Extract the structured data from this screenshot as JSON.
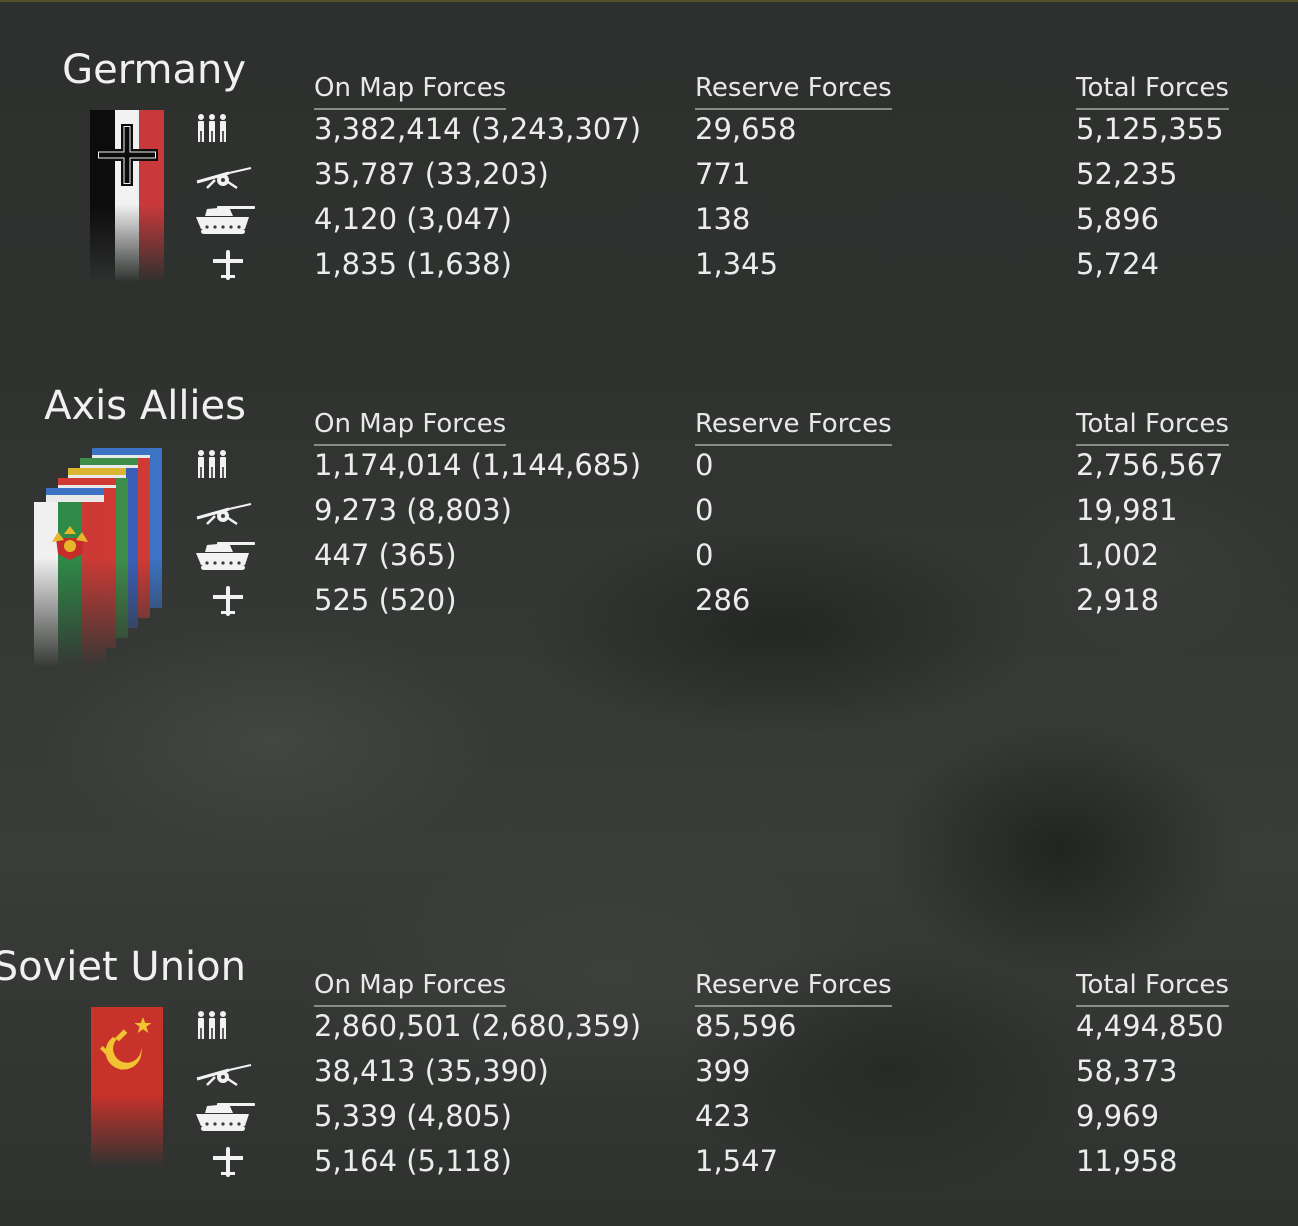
{
  "icons": {
    "manpower": "infantry-icon",
    "guns": "artillery-icon",
    "afv": "tank-icon",
    "aircraft": "aircraft-icon"
  },
  "colors": {
    "text": "#ebebeb",
    "header_rule": "#8a8c89",
    "background": "#2f3230"
  },
  "factions": [
    {
      "name": "Germany",
      "flag": "germany-flag",
      "headers": {
        "on_map": "On Map Forces",
        "reserve": "Reserve Forces",
        "total": "Total Forces"
      },
      "rows": [
        {
          "icon": "infantry-icon",
          "on_map": "3,382,414 (3,243,307)",
          "reserve": "29,658",
          "total": "5,125,355"
        },
        {
          "icon": "artillery-icon",
          "on_map": "35,787 (33,203)",
          "reserve": "771",
          "total": "52,235"
        },
        {
          "icon": "tank-icon",
          "on_map": "4,120 (3,047)",
          "reserve": "138",
          "total": "5,896"
        },
        {
          "icon": "aircraft-icon",
          "on_map": "1,835 (1,638)",
          "reserve": "1,345",
          "total": "5,724"
        }
      ]
    },
    {
      "name": "Axis Allies",
      "flag": "axis-allies-flags",
      "headers": {
        "on_map": "On Map Forces",
        "reserve": "Reserve Forces",
        "total": "Total Forces"
      },
      "rows": [
        {
          "icon": "infantry-icon",
          "on_map": "1,174,014 (1,144,685)",
          "reserve": "0",
          "total": "2,756,567"
        },
        {
          "icon": "artillery-icon",
          "on_map": "9,273 (8,803)",
          "reserve": "0",
          "total": "19,981"
        },
        {
          "icon": "tank-icon",
          "on_map": "447 (365)",
          "reserve": "0",
          "total": "1,002"
        },
        {
          "icon": "aircraft-icon",
          "on_map": "525 (520)",
          "reserve": "286",
          "total": "2,918"
        }
      ]
    },
    {
      "name": "Soviet Union",
      "flag": "soviet-flag",
      "headers": {
        "on_map": "On Map Forces",
        "reserve": "Reserve Forces",
        "total": "Total Forces"
      },
      "rows": [
        {
          "icon": "infantry-icon",
          "on_map": "2,860,501 (2,680,359)",
          "reserve": "85,596",
          "total": "4,494,850"
        },
        {
          "icon": "artillery-icon",
          "on_map": "38,413 (35,390)",
          "reserve": "399",
          "total": "58,373"
        },
        {
          "icon": "tank-icon",
          "on_map": "5,339 (4,805)",
          "reserve": "423",
          "total": "9,969"
        },
        {
          "icon": "aircraft-icon",
          "on_map": "5,164 (5,118)",
          "reserve": "1,547",
          "total": "11,958"
        }
      ]
    }
  ]
}
